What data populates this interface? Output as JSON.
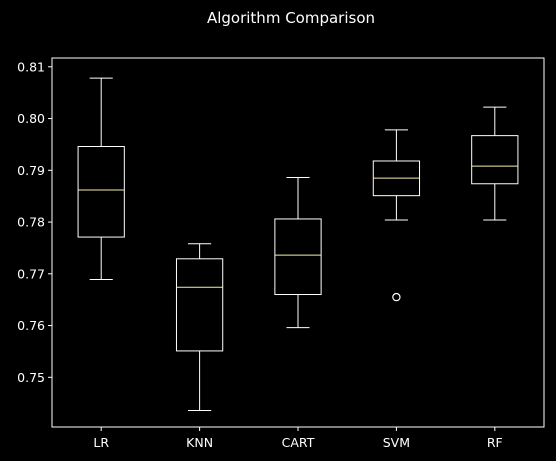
{
  "chart_data": {
    "type": "box",
    "title": "Algorithm Comparison",
    "xlabel": "",
    "ylabel": "",
    "categories": [
      "LR",
      "KNN",
      "CART",
      "SVM",
      "RF"
    ],
    "ylim": [
      0.7404,
      0.8117
    ],
    "yticks": [
      0.75,
      0.76,
      0.77,
      0.78,
      0.79,
      0.8,
      0.81
    ],
    "ytick_labels": [
      "0.75",
      "0.76",
      "0.77",
      "0.78",
      "0.79",
      "0.80",
      "0.81"
    ],
    "grid": false,
    "legend": "none",
    "series": [
      {
        "category": "LR",
        "whisker_low": 0.7689,
        "q1": 0.7771,
        "median": 0.7862,
        "q3": 0.7946,
        "whisker_high": 0.8078,
        "outliers": []
      },
      {
        "category": "KNN",
        "whisker_low": 0.7436,
        "q1": 0.7551,
        "median": 0.7674,
        "q3": 0.7729,
        "whisker_high": 0.7758,
        "outliers": []
      },
      {
        "category": "CART",
        "whisker_low": 0.7596,
        "q1": 0.766,
        "median": 0.7736,
        "q3": 0.7806,
        "whisker_high": 0.7886,
        "outliers": []
      },
      {
        "category": "SVM",
        "whisker_low": 0.7804,
        "q1": 0.7851,
        "median": 0.7885,
        "q3": 0.7918,
        "whisker_high": 0.7978,
        "outliers": [
          0.7655
        ]
      },
      {
        "category": "RF",
        "whisker_low": 0.7804,
        "q1": 0.7874,
        "median": 0.7908,
        "q3": 0.7967,
        "whisker_high": 0.8022,
        "outliers": []
      }
    ],
    "colors": {
      "background": "#000000",
      "box": "#ffffff",
      "median": "#f5f0a8",
      "axis": "#ffffff",
      "text": "#ffffff"
    }
  }
}
